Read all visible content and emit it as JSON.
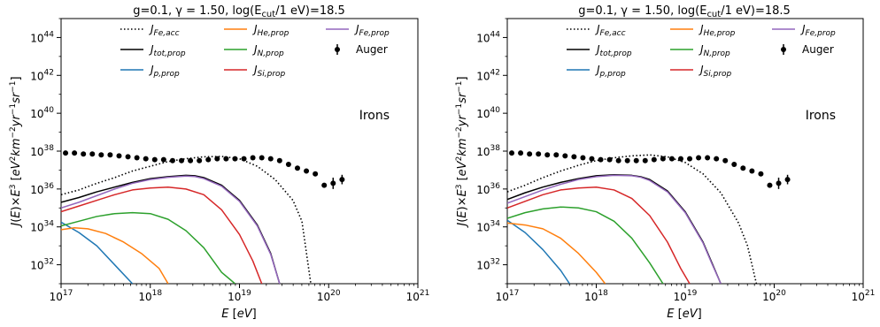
{
  "colors": {
    "fe_acc": "#000000",
    "tot": "#000000",
    "p": "#1f77b4",
    "he": "#ff7f0e",
    "n": "#2ca02c",
    "si": "#d62728",
    "fe": "#9467bd",
    "auger": "#000000"
  },
  "chart_data": [
    {
      "type": "line",
      "title": "g=0.1, γ = 1.50, log(E_cut/1 eV)=18.5",
      "title_parts": {
        "main": "g=0.1, γ = 1.50, log(E",
        "sub": "cut",
        "tail": "/1 eV)=18.5"
      },
      "xlabel": "E [eV]",
      "ylabel": "J(E)×E³ [eV² km⁻² yr⁻¹ sr⁻¹]",
      "xscale": "log",
      "yscale": "log",
      "xlim": [
        1e+17,
        1e+21
      ],
      "ylim": [
        1e+31,
        1e+45
      ],
      "x_ticks": [
        "10^17",
        "10^18",
        "10^19",
        "10^20",
        "10^21"
      ],
      "y_ticks": [
        "10^32",
        "10^34",
        "10^36",
        "10^38",
        "10^40",
        "10^42",
        "10^44"
      ],
      "annotation": "Irons",
      "legend_loc": "upper-right",
      "series": [
        {
          "name": "J_{Fe,acc}",
          "key": "fe_acc",
          "style": "dotted",
          "points": [
            [
              17.0,
              35.7
            ],
            [
              17.2,
              35.95
            ],
            [
              17.4,
              36.3
            ],
            [
              17.6,
              36.6
            ],
            [
              17.8,
              36.95
            ],
            [
              18.0,
              37.2
            ],
            [
              18.2,
              37.45
            ],
            [
              18.4,
              37.6
            ],
            [
              18.6,
              37.7
            ],
            [
              18.8,
              37.72
            ],
            [
              19.0,
              37.6
            ],
            [
              19.2,
              37.2
            ],
            [
              19.4,
              36.5
            ],
            [
              19.6,
              35.4
            ],
            [
              19.7,
              34.3
            ],
            [
              19.8,
              31.0
            ]
          ]
        },
        {
          "name": "J_{tot,prop}",
          "key": "tot",
          "style": "solid",
          "points": [
            [
              17.0,
              35.3
            ],
            [
              17.2,
              35.55
            ],
            [
              17.4,
              35.85
            ],
            [
              17.6,
              36.1
            ],
            [
              17.8,
              36.35
            ],
            [
              18.0,
              36.55
            ],
            [
              18.2,
              36.65
            ],
            [
              18.4,
              36.72
            ],
            [
              18.5,
              36.7
            ],
            [
              18.6,
              36.6
            ],
            [
              18.8,
              36.2
            ],
            [
              19.0,
              35.4
            ],
            [
              19.2,
              34.1
            ],
            [
              19.35,
              32.6
            ],
            [
              19.45,
              31.0
            ]
          ]
        },
        {
          "name": "J_{p,prop}",
          "key": "p",
          "style": "solid",
          "points": [
            [
              17.0,
              34.25
            ],
            [
              17.2,
              33.7
            ],
            [
              17.4,
              33.0
            ],
            [
              17.6,
              32.0
            ],
            [
              17.8,
              31.0
            ]
          ]
        },
        {
          "name": "J_{He,prop}",
          "key": "he",
          "style": "solid",
          "points": [
            [
              17.0,
              33.85
            ],
            [
              17.15,
              33.95
            ],
            [
              17.3,
              33.9
            ],
            [
              17.5,
              33.65
            ],
            [
              17.7,
              33.2
            ],
            [
              17.9,
              32.6
            ],
            [
              18.1,
              31.8
            ],
            [
              18.2,
              31.0
            ]
          ]
        },
        {
          "name": "J_{N,prop}",
          "key": "n",
          "style": "solid",
          "points": [
            [
              17.0,
              34.05
            ],
            [
              17.2,
              34.3
            ],
            [
              17.4,
              34.55
            ],
            [
              17.6,
              34.7
            ],
            [
              17.8,
              34.75
            ],
            [
              18.0,
              34.7
            ],
            [
              18.2,
              34.4
            ],
            [
              18.4,
              33.8
            ],
            [
              18.6,
              32.9
            ],
            [
              18.8,
              31.6
            ],
            [
              18.95,
              31.0
            ]
          ]
        },
        {
          "name": "J_{Si,prop}",
          "key": "si",
          "style": "solid",
          "points": [
            [
              17.0,
              34.8
            ],
            [
              17.2,
              35.1
            ],
            [
              17.4,
              35.4
            ],
            [
              17.6,
              35.7
            ],
            [
              17.8,
              35.95
            ],
            [
              18.0,
              36.05
            ],
            [
              18.2,
              36.1
            ],
            [
              18.4,
              36.0
            ],
            [
              18.6,
              35.7
            ],
            [
              18.8,
              34.9
            ],
            [
              19.0,
              33.6
            ],
            [
              19.15,
              32.2
            ],
            [
              19.25,
              31.0
            ]
          ]
        },
        {
          "name": "J_{Fe,prop}",
          "key": "fe",
          "style": "solid",
          "points": [
            [
              17.0,
              35.0
            ],
            [
              17.2,
              35.3
            ],
            [
              17.4,
              35.65
            ],
            [
              17.6,
              36.0
            ],
            [
              17.8,
              36.3
            ],
            [
              18.0,
              36.5
            ],
            [
              18.2,
              36.62
            ],
            [
              18.4,
              36.68
            ],
            [
              18.5,
              36.66
            ],
            [
              18.6,
              36.55
            ],
            [
              18.8,
              36.15
            ],
            [
              19.0,
              35.35
            ],
            [
              19.2,
              34.05
            ],
            [
              19.35,
              32.55
            ],
            [
              19.45,
              31.0
            ]
          ]
        }
      ],
      "auger": {
        "name": "Auger",
        "points": [
          [
            17.05,
            37.9
          ],
          [
            17.15,
            37.9
          ],
          [
            17.25,
            37.85
          ],
          [
            17.35,
            37.85
          ],
          [
            17.45,
            37.8
          ],
          [
            17.55,
            37.8
          ],
          [
            17.65,
            37.75
          ],
          [
            17.75,
            37.7
          ],
          [
            17.85,
            37.65
          ],
          [
            17.95,
            37.6
          ],
          [
            18.05,
            37.55
          ],
          [
            18.15,
            37.55
          ],
          [
            18.25,
            37.5
          ],
          [
            18.35,
            37.5
          ],
          [
            18.45,
            37.5
          ],
          [
            18.55,
            37.5
          ],
          [
            18.65,
            37.55
          ],
          [
            18.75,
            37.6
          ],
          [
            18.85,
            37.6
          ],
          [
            18.95,
            37.6
          ],
          [
            19.05,
            37.6
          ],
          [
            19.15,
            37.65
          ],
          [
            19.25,
            37.65
          ],
          [
            19.35,
            37.6
          ],
          [
            19.45,
            37.5
          ],
          [
            19.55,
            37.3
          ],
          [
            19.65,
            37.1
          ],
          [
            19.75,
            36.95
          ],
          [
            19.85,
            36.8
          ],
          [
            19.95,
            36.2
          ],
          [
            20.05,
            36.3
          ],
          [
            20.15,
            36.5
          ]
        ],
        "errors": [
          [
            20.05,
            0.3
          ],
          [
            20.15,
            0.25
          ]
        ]
      }
    },
    {
      "type": "line",
      "title": "g=0.1, γ = 1.50, log(E_cut/1 eV)=18.5",
      "title_parts": {
        "main": "g=0.1, γ = 1.50, log(E",
        "sub": "cut",
        "tail": "/1 eV)=18.5"
      },
      "xlabel": "E [eV]",
      "ylabel": "J(E)×E³ [eV² km⁻² yr⁻¹ sr⁻¹]",
      "xscale": "log",
      "yscale": "log",
      "xlim": [
        1e+17,
        1e+21
      ],
      "ylim": [
        1e+31,
        1e+45
      ],
      "x_ticks": [
        "10^17",
        "10^18",
        "10^19",
        "10^20",
        "10^21"
      ],
      "y_ticks": [
        "10^32",
        "10^34",
        "10^36",
        "10^38",
        "10^40",
        "10^42",
        "10^44"
      ],
      "annotation": "Irons",
      "legend_loc": "upper-right",
      "series": [
        {
          "name": "J_{Fe,acc}",
          "key": "fe_acc",
          "style": "dotted",
          "points": [
            [
              17.0,
              35.85
            ],
            [
              17.2,
              36.2
            ],
            [
              17.4,
              36.6
            ],
            [
              17.6,
              36.95
            ],
            [
              17.8,
              37.25
            ],
            [
              18.0,
              37.5
            ],
            [
              18.2,
              37.65
            ],
            [
              18.4,
              37.75
            ],
            [
              18.6,
              37.8
            ],
            [
              18.8,
              37.7
            ],
            [
              19.0,
              37.4
            ],
            [
              19.2,
              36.8
            ],
            [
              19.4,
              35.8
            ],
            [
              19.6,
              34.2
            ],
            [
              19.7,
              33.0
            ],
            [
              19.8,
              31.0
            ]
          ]
        },
        {
          "name": "J_{tot,prop}",
          "key": "tot",
          "style": "solid",
          "points": [
            [
              17.0,
              35.45
            ],
            [
              17.2,
              35.8
            ],
            [
              17.4,
              36.1
            ],
            [
              17.6,
              36.35
            ],
            [
              17.8,
              36.55
            ],
            [
              18.0,
              36.7
            ],
            [
              18.2,
              36.75
            ],
            [
              18.4,
              36.72
            ],
            [
              18.5,
              36.65
            ],
            [
              18.6,
              36.5
            ],
            [
              18.8,
              35.9
            ],
            [
              19.0,
              34.8
            ],
            [
              19.2,
              33.2
            ],
            [
              19.3,
              32.1
            ],
            [
              19.4,
              31.0
            ]
          ]
        },
        {
          "name": "J_{p,prop}",
          "key": "p",
          "style": "solid",
          "points": [
            [
              17.0,
              34.35
            ],
            [
              17.2,
              33.7
            ],
            [
              17.4,
              32.8
            ],
            [
              17.6,
              31.7
            ],
            [
              17.7,
              31.0
            ]
          ]
        },
        {
          "name": "J_{He,prop}",
          "key": "he",
          "style": "solid",
          "points": [
            [
              17.0,
              34.2
            ],
            [
              17.2,
              34.1
            ],
            [
              17.4,
              33.9
            ],
            [
              17.6,
              33.4
            ],
            [
              17.8,
              32.6
            ],
            [
              18.0,
              31.6
            ],
            [
              18.1,
              31.0
            ]
          ]
        },
        {
          "name": "J_{N,prop}",
          "key": "n",
          "style": "solid",
          "points": [
            [
              17.0,
              34.45
            ],
            [
              17.2,
              34.75
            ],
            [
              17.4,
              34.95
            ],
            [
              17.6,
              35.05
            ],
            [
              17.8,
              35.0
            ],
            [
              18.0,
              34.8
            ],
            [
              18.2,
              34.3
            ],
            [
              18.4,
              33.4
            ],
            [
              18.6,
              32.1
            ],
            [
              18.75,
              31.0
            ]
          ]
        },
        {
          "name": "J_{Si,prop}",
          "key": "si",
          "style": "solid",
          "points": [
            [
              17.0,
              35.0
            ],
            [
              17.2,
              35.35
            ],
            [
              17.4,
              35.7
            ],
            [
              17.6,
              35.95
            ],
            [
              17.8,
              36.05
            ],
            [
              18.0,
              36.1
            ],
            [
              18.2,
              35.95
            ],
            [
              18.4,
              35.5
            ],
            [
              18.6,
              34.6
            ],
            [
              18.8,
              33.2
            ],
            [
              18.95,
              31.8
            ],
            [
              19.05,
              31.0
            ]
          ]
        },
        {
          "name": "J_{Fe,prop}",
          "key": "fe",
          "style": "solid",
          "points": [
            [
              17.0,
              35.25
            ],
            [
              17.2,
              35.6
            ],
            [
              17.4,
              35.95
            ],
            [
              17.6,
              36.25
            ],
            [
              17.8,
              36.5
            ],
            [
              18.0,
              36.65
            ],
            [
              18.2,
              36.72
            ],
            [
              18.4,
              36.7
            ],
            [
              18.5,
              36.62
            ],
            [
              18.6,
              36.45
            ],
            [
              18.8,
              35.85
            ],
            [
              19.0,
              34.75
            ],
            [
              19.2,
              33.15
            ],
            [
              19.3,
              32.05
            ],
            [
              19.4,
              31.0
            ]
          ]
        }
      ],
      "auger": {
        "name": "Auger",
        "points": [
          [
            17.05,
            37.9
          ],
          [
            17.15,
            37.9
          ],
          [
            17.25,
            37.85
          ],
          [
            17.35,
            37.85
          ],
          [
            17.45,
            37.8
          ],
          [
            17.55,
            37.8
          ],
          [
            17.65,
            37.75
          ],
          [
            17.75,
            37.7
          ],
          [
            17.85,
            37.65
          ],
          [
            17.95,
            37.6
          ],
          [
            18.05,
            37.55
          ],
          [
            18.15,
            37.55
          ],
          [
            18.25,
            37.5
          ],
          [
            18.35,
            37.5
          ],
          [
            18.45,
            37.5
          ],
          [
            18.55,
            37.5
          ],
          [
            18.65,
            37.55
          ],
          [
            18.75,
            37.6
          ],
          [
            18.85,
            37.6
          ],
          [
            18.95,
            37.6
          ],
          [
            19.05,
            37.6
          ],
          [
            19.15,
            37.65
          ],
          [
            19.25,
            37.65
          ],
          [
            19.35,
            37.6
          ],
          [
            19.45,
            37.5
          ],
          [
            19.55,
            37.3
          ],
          [
            19.65,
            37.1
          ],
          [
            19.75,
            36.95
          ],
          [
            19.85,
            36.8
          ],
          [
            19.95,
            36.2
          ],
          [
            20.05,
            36.3
          ],
          [
            20.15,
            36.5
          ]
        ],
        "errors": [
          [
            20.05,
            0.3
          ],
          [
            20.15,
            0.25
          ]
        ]
      }
    }
  ]
}
